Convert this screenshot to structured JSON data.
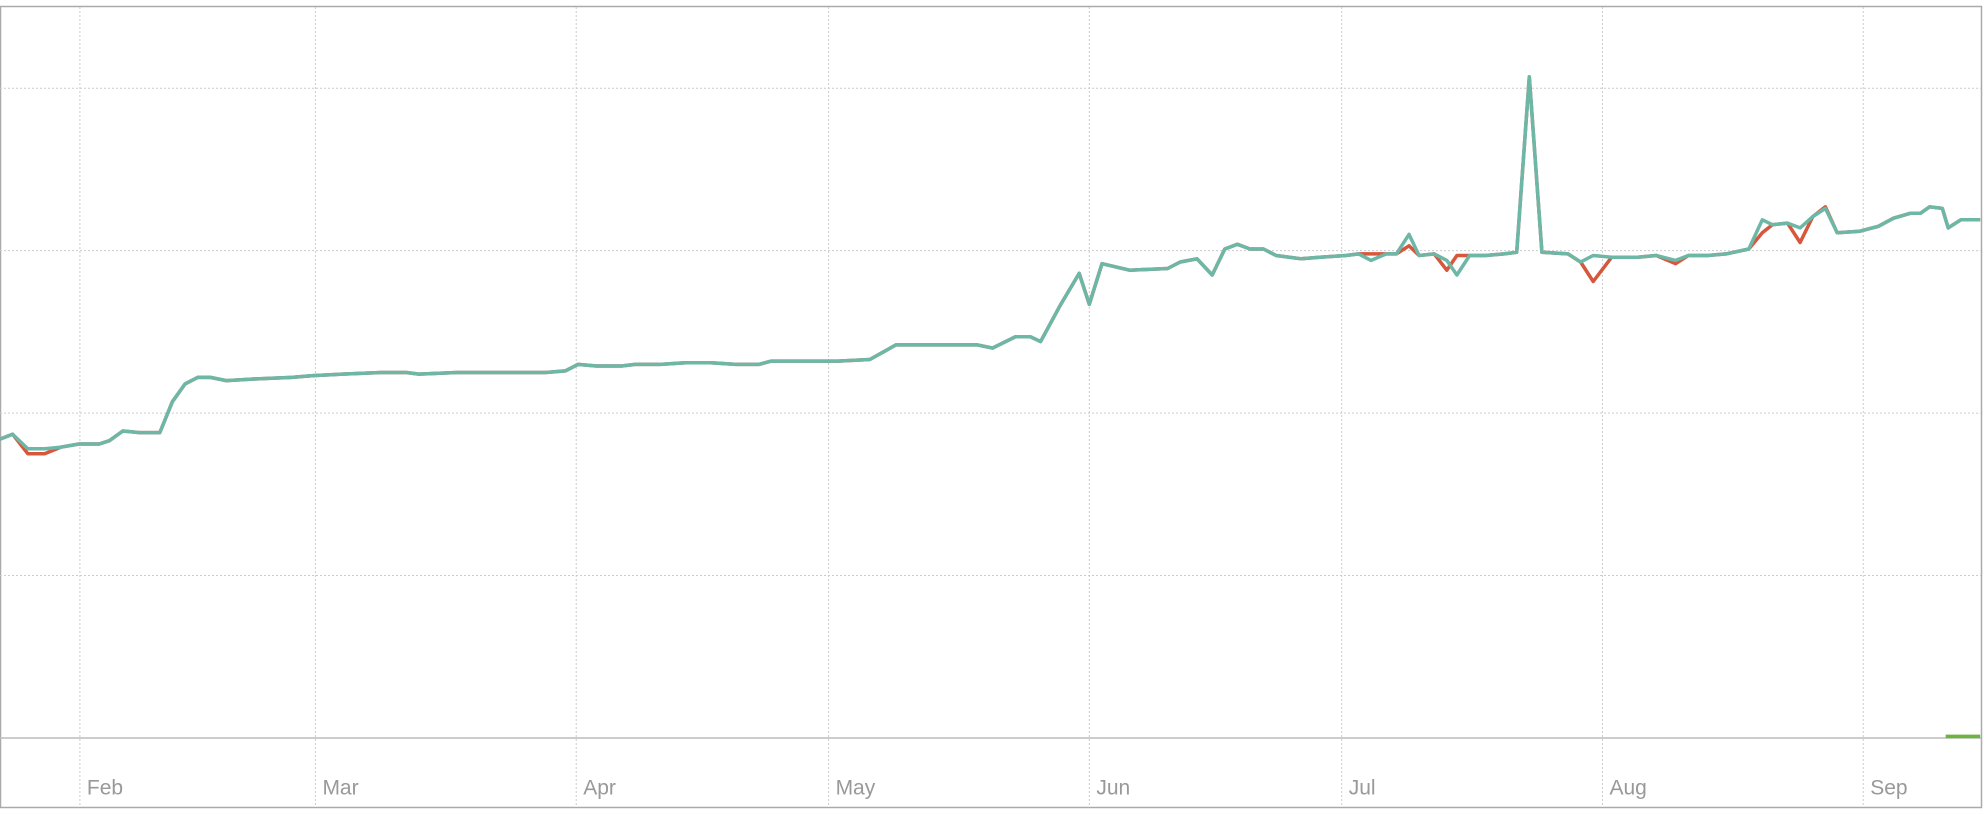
{
  "chart_data": {
    "type": "line",
    "xlim": [
      22.5,
      258
    ],
    "ylim": [
      0,
      4.5
    ],
    "xticks": [
      {
        "value": 32,
        "label": "Feb"
      },
      {
        "value": 60,
        "label": "Mar"
      },
      {
        "value": 91,
        "label": "Apr"
      },
      {
        "value": 121,
        "label": "May"
      },
      {
        "value": 152,
        "label": "Jun"
      },
      {
        "value": 182,
        "label": "Jul"
      },
      {
        "value": 213,
        "label": "Aug"
      },
      {
        "value": 244,
        "label": "Sep"
      }
    ],
    "ygrid": [
      0,
      1,
      2,
      3,
      4
    ],
    "series": [
      {
        "color": "#d6573c",
        "x": [
          22.5,
          24.0,
          25.8,
          27.8,
          29.7,
          31.9,
          34.3,
          35.5,
          37.1,
          39.1,
          41.5,
          43.0,
          44.5,
          46.0,
          47.5,
          49.4,
          52.7,
          57.2,
          59.5,
          63.2,
          67.8,
          70.8,
          72.3,
          76.8,
          78.3,
          82.9,
          87.4,
          89.7,
          91.2,
          93.4,
          96.4,
          98.0,
          101.0,
          104.0,
          107.0,
          110.0,
          112.7,
          114.2,
          117.6,
          122.1,
          125.9,
          129.0,
          132.7,
          138.7,
          140.5,
          143.2,
          145.0,
          146.2,
          148.5,
          150.8,
          152.0,
          153.5,
          156.8,
          161.3,
          162.8,
          164.8,
          166.6,
          168.1,
          169.6,
          171.1,
          172.7,
          174.2,
          177.2,
          179.4,
          182.5,
          184.0,
          185.5,
          187.3,
          188.5,
          190.0,
          191.2,
          193.0,
          194.5,
          195.7,
          197.2,
          199.1,
          201.3,
          202.8,
          204.3,
          205.8,
          208.9,
          210.4,
          211.9,
          214.1,
          217.2,
          219.4,
          221.7,
          223.2,
          225.5,
          227.7,
          230.4,
          232.0,
          233.2,
          235.0,
          236.5,
          238.0,
          239.5,
          240.9,
          243.6,
          245.8,
          247.6,
          249.6,
          250.8,
          251.9,
          253.4,
          254.1,
          255.6,
          257.9
        ],
        "values": [
          1.84,
          1.87,
          1.75,
          1.75,
          1.79,
          1.81,
          1.81,
          1.83,
          1.89,
          1.88,
          1.88,
          2.07,
          2.18,
          2.22,
          2.22,
          2.2,
          2.21,
          2.22,
          2.23,
          2.24,
          2.25,
          2.25,
          2.24,
          2.25,
          2.25,
          2.25,
          2.25,
          2.26,
          2.3,
          2.29,
          2.29,
          2.3,
          2.3,
          2.31,
          2.31,
          2.3,
          2.3,
          2.32,
          2.32,
          2.32,
          2.33,
          2.42,
          2.42,
          2.42,
          2.4,
          2.47,
          2.47,
          2.44,
          2.66,
          2.86,
          2.67,
          2.92,
          2.88,
          2.89,
          2.93,
          2.95,
          2.85,
          3.01,
          3.04,
          3.01,
          3.01,
          2.97,
          2.95,
          2.96,
          2.97,
          2.98,
          2.98,
          2.98,
          2.98,
          3.03,
          2.97,
          2.98,
          2.88,
          2.97,
          2.97,
          2.97,
          2.98,
          2.99,
          4.07,
          2.99,
          2.98,
          2.93,
          2.81,
          2.96,
          2.96,
          2.97,
          2.92,
          2.97,
          2.97,
          2.98,
          3.01,
          3.11,
          3.16,
          3.17,
          3.05,
          3.21,
          3.27,
          3.11,
          3.12,
          3.15,
          3.2,
          3.23,
          3.23,
          3.27,
          3.26,
          3.14,
          3.19,
          3.19
        ]
      },
      {
        "color": "#6db7a7",
        "x": [
          22.5,
          24.0,
          25.8,
          27.8,
          29.7,
          31.9,
          34.3,
          35.5,
          37.1,
          39.1,
          41.5,
          43.0,
          44.5,
          46.0,
          47.5,
          49.4,
          52.7,
          57.2,
          59.5,
          63.2,
          67.8,
          70.8,
          72.3,
          76.8,
          78.3,
          82.9,
          87.4,
          89.7,
          91.2,
          93.4,
          96.4,
          98.0,
          101.0,
          104.0,
          107.0,
          110.0,
          112.7,
          114.2,
          117.6,
          122.1,
          125.9,
          129.0,
          132.7,
          138.7,
          140.5,
          143.2,
          145.0,
          146.2,
          148.5,
          150.8,
          152.0,
          153.5,
          156.8,
          161.3,
          162.8,
          164.8,
          166.6,
          168.1,
          169.6,
          171.1,
          172.7,
          174.2,
          177.2,
          179.4,
          182.5,
          184.0,
          185.5,
          187.3,
          188.5,
          190.0,
          191.2,
          193.0,
          194.5,
          195.7,
          197.2,
          199.1,
          201.3,
          202.8,
          204.3,
          205.8,
          208.9,
          210.4,
          211.9,
          214.1,
          217.2,
          219.4,
          221.7,
          223.2,
          225.5,
          227.7,
          230.4,
          232.0,
          233.2,
          235.0,
          236.5,
          238.0,
          239.5,
          240.9,
          243.6,
          245.8,
          247.6,
          249.6,
          250.8,
          251.9,
          253.4,
          254.1,
          255.6,
          257.9
        ],
        "values": [
          1.84,
          1.87,
          1.78,
          1.78,
          1.79,
          1.81,
          1.81,
          1.83,
          1.89,
          1.88,
          1.88,
          2.07,
          2.18,
          2.22,
          2.22,
          2.2,
          2.21,
          2.22,
          2.23,
          2.24,
          2.25,
          2.25,
          2.24,
          2.25,
          2.25,
          2.25,
          2.25,
          2.26,
          2.3,
          2.29,
          2.29,
          2.3,
          2.3,
          2.31,
          2.31,
          2.3,
          2.3,
          2.32,
          2.32,
          2.32,
          2.33,
          2.42,
          2.42,
          2.42,
          2.4,
          2.47,
          2.47,
          2.44,
          2.66,
          2.86,
          2.67,
          2.92,
          2.88,
          2.89,
          2.93,
          2.95,
          2.85,
          3.01,
          3.04,
          3.01,
          3.01,
          2.97,
          2.95,
          2.96,
          2.97,
          2.98,
          2.94,
          2.98,
          2.98,
          3.1,
          2.97,
          2.98,
          2.94,
          2.85,
          2.97,
          2.97,
          2.98,
          2.99,
          4.07,
          2.99,
          2.98,
          2.93,
          2.97,
          2.96,
          2.96,
          2.97,
          2.94,
          2.97,
          2.97,
          2.98,
          3.01,
          3.19,
          3.16,
          3.17,
          3.14,
          3.21,
          3.26,
          3.11,
          3.12,
          3.15,
          3.2,
          3.23,
          3.23,
          3.27,
          3.26,
          3.14,
          3.19,
          3.19
        ]
      },
      {
        "color": "#6ab53c",
        "x": [
          253.8,
          257.9
        ],
        "values": [
          0.01,
          0.01
        ]
      }
    ]
  }
}
